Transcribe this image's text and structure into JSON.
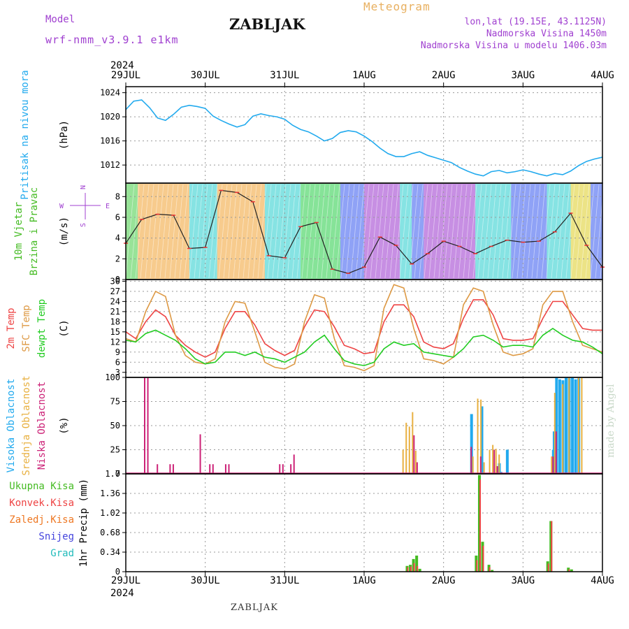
{
  "header": {
    "model_label": "Model",
    "model_name": "wrf-nmm_v3.9.1  e1km",
    "station": "ZABLJAK",
    "product": "Meteogram",
    "lonlat": "lon,lat (19.15E, 43.1125N)",
    "elevation": "Nadmorska Visina 1450m",
    "model_elevation": "Nadmorska Visina u modelu 1406.03m"
  },
  "footer": {
    "station": "ZABLJAK"
  },
  "credit": "made by Angel",
  "time_axis": {
    "year": "2024",
    "labels": [
      "29JUL",
      "30JUL",
      "31JUL",
      "1AUG",
      "2AUG",
      "3AUG",
      "4AUG"
    ]
  },
  "colors": {
    "pressure": "#22aaee",
    "t2m": "#ee4444",
    "sfc": "#dd9944",
    "dewpt": "#22cc22",
    "high_cloud": "#22aaee",
    "mid_cloud": "#e8b040",
    "low_cloud": "#cc2277",
    "total_precip": "#44bb22",
    "convective": "#ee4444",
    "frozen": "#ee7722",
    "snow": "#4444dd",
    "hail": "#22bbbb",
    "purple_label": "#a040d0"
  },
  "chart_data": [
    {
      "type": "line",
      "panel": "pressure",
      "ylabel": "(hPa)",
      "side_labels": [
        "Pritisak na nivou mora"
      ],
      "ylim": [
        1009,
        1025
      ],
      "yticks": [
        1012,
        1016,
        1020,
        1024
      ],
      "x": [
        0,
        0.1,
        0.2,
        0.3,
        0.4,
        0.5,
        0.6,
        0.7,
        0.8,
        0.9,
        1.0,
        1.1,
        1.2,
        1.3,
        1.4,
        1.5,
        1.6,
        1.7,
        1.8,
        1.9,
        2.0,
        2.1,
        2.2,
        2.3,
        2.4,
        2.5,
        2.6,
        2.7,
        2.8,
        2.9,
        3.0,
        3.1,
        3.2,
        3.3,
        3.4,
        3.5,
        3.6,
        3.7,
        3.8,
        3.9,
        4.0,
        4.1,
        4.2,
        4.3,
        4.4,
        4.5,
        4.6,
        4.7,
        4.8,
        4.9,
        5.0,
        5.1,
        5.2,
        5.3,
        5.4,
        5.5,
        5.6,
        5.7,
        5.8,
        5.9,
        6.0
      ],
      "series": [
        {
          "name": "",
          "values": [
            1021.2,
            1022.6,
            1022.8,
            1021.5,
            1019.8,
            1019.4,
            1020.4,
            1021.6,
            1021.9,
            1021.7,
            1021.4,
            1020.1,
            1019.4,
            1018.8,
            1018.3,
            1018.7,
            1020.1,
            1020.5,
            1020.2,
            1020.0,
            1019.6,
            1018.6,
            1017.9,
            1017.5,
            1016.8,
            1016.0,
            1016.4,
            1017.4,
            1017.7,
            1017.5,
            1016.8,
            1015.9,
            1014.8,
            1013.9,
            1013.4,
            1013.4,
            1013.9,
            1014.2,
            1013.6,
            1013.2,
            1012.8,
            1012.4,
            1011.6,
            1011.0,
            1010.5,
            1010.2,
            1010.9,
            1011.1,
            1010.7,
            1010.9,
            1011.2,
            1010.9,
            1010.5,
            1010.2,
            1010.6,
            1010.4,
            1011.0,
            1011.9,
            1012.6,
            1013.0,
            1013.3
          ]
        }
      ]
    },
    {
      "type": "line",
      "panel": "wind",
      "ylabel": "(m/s)",
      "side_labels": [
        "10m Vjetar",
        "Brzina i Pravac"
      ],
      "compass": [
        "N",
        "E",
        "S",
        "W"
      ],
      "ylim": [
        0,
        9.3
      ],
      "yticks": [
        0,
        2,
        4,
        6,
        8
      ],
      "x": [
        0,
        0.2,
        0.4,
        0.6,
        0.8,
        1.0,
        1.2,
        1.4,
        1.6,
        1.8,
        2.0,
        2.2,
        2.4,
        2.6,
        2.8,
        3.0,
        3.2,
        3.4,
        3.6,
        3.8,
        4.0,
        4.2,
        4.4,
        4.6,
        4.8,
        5.0,
        5.2,
        5.4,
        5.6,
        5.8,
        6.0
      ],
      "series": [
        {
          "name": "",
          "values": [
            3.5,
            5.8,
            6.3,
            6.2,
            3.0,
            3.1,
            8.6,
            8.4,
            7.5,
            2.3,
            2.1,
            5.1,
            5.5,
            1.0,
            0.6,
            1.2,
            4.1,
            3.3,
            1.5,
            2.5,
            3.7,
            3.2,
            2.5,
            3.2,
            3.8,
            3.6,
            3.7,
            4.6,
            6.4,
            3.3,
            1.2
          ]
        }
      ]
    },
    {
      "type": "line",
      "panel": "temperature",
      "ylabel": "(C)",
      "side_labels": [
        "2m Temp",
        "SFC Temp",
        "dewpt Temp"
      ],
      "ylim": [
        1.5,
        30.5
      ],
      "yticks": [
        3,
        6,
        9,
        12,
        15,
        18,
        21,
        24,
        27,
        30
      ],
      "x": [
        0,
        0.125,
        0.25,
        0.375,
        0.5,
        0.625,
        0.75,
        0.875,
        1.0,
        1.125,
        1.25,
        1.375,
        1.5,
        1.625,
        1.75,
        1.875,
        2.0,
        2.125,
        2.25,
        2.375,
        2.5,
        2.625,
        2.75,
        2.875,
        3.0,
        3.125,
        3.25,
        3.375,
        3.5,
        3.625,
        3.75,
        3.875,
        4.0,
        4.125,
        4.25,
        4.375,
        4.5,
        4.625,
        4.75,
        4.875,
        5.0,
        5.125,
        5.25,
        5.375,
        5.5,
        5.625,
        5.75,
        5.875,
        6.0
      ],
      "series": [
        {
          "name": "2m Temp",
          "values": [
            15,
            13,
            18,
            21.5,
            19.5,
            14,
            11,
            9,
            7.5,
            9,
            16,
            21,
            21,
            17,
            11.5,
            9.5,
            8,
            9.5,
            16.5,
            21.5,
            21,
            16.5,
            11,
            10,
            8.5,
            9,
            18,
            23,
            23,
            19.5,
            12,
            10.5,
            10,
            11.5,
            19,
            24.5,
            24.5,
            20,
            13,
            12.5,
            12.5,
            13,
            19,
            24,
            24,
            20,
            16,
            15.5,
            15.5
          ]
        },
        {
          "name": "SFC Temp",
          "values": [
            13,
            12,
            21,
            27,
            25.5,
            14,
            8,
            6,
            5.5,
            7,
            18,
            24,
            23.5,
            15,
            6,
            4.5,
            4,
            5.5,
            18,
            26,
            25,
            13,
            5,
            4.5,
            3.5,
            5,
            22,
            29,
            28,
            16,
            7,
            6.5,
            5.5,
            7.5,
            23,
            28,
            27,
            17,
            9,
            8,
            8.5,
            10,
            23,
            27,
            27,
            18,
            11,
            10,
            9
          ]
        },
        {
          "name": "dewpt Temp",
          "values": [
            12.5,
            12,
            14.5,
            15.5,
            14,
            12.5,
            10,
            7,
            5.5,
            6,
            9,
            9,
            8,
            9,
            7.5,
            7,
            6,
            7.5,
            9,
            12,
            14,
            10,
            6.5,
            5.5,
            5,
            6,
            10,
            12,
            11,
            11.5,
            9,
            8.5,
            8,
            7.5,
            10,
            13.5,
            14,
            12.5,
            10.5,
            11,
            11,
            10.5,
            14,
            16,
            14,
            12.5,
            12,
            10.5,
            8.5
          ]
        }
      ]
    },
    {
      "type": "bar",
      "panel": "cloud",
      "ylabel": "(%)",
      "side_labels": [
        "Visoka Oblacnost",
        "Srednja Oblacnost",
        "Niska Oblacnost"
      ],
      "ylim": [
        0,
        100
      ],
      "yticks": [
        0,
        25,
        50,
        75,
        100
      ],
      "series": [
        {
          "name": "Visoka Oblacnost",
          "points": [
            [
              4.72,
              11
            ],
            [
              4.74,
              2
            ],
            [
              5.4,
              25
            ],
            [
              5.41,
              44
            ],
            [
              5.44,
              100
            ],
            [
              5.48,
              98
            ],
            [
              5.52,
              97
            ],
            [
              5.56,
              100
            ],
            [
              5.6,
              99
            ],
            [
              5.64,
              100
            ],
            [
              5.68,
              98
            ],
            [
              5.72,
              99
            ],
            [
              4.37,
              62
            ],
            [
              4.5,
              70
            ],
            [
              4.82,
              25
            ]
          ]
        },
        {
          "name": "Srednja Oblacnost",
          "points": [
            [
              3.49,
              25
            ],
            [
              3.53,
              53
            ],
            [
              3.57,
              49
            ],
            [
              3.61,
              64
            ],
            [
              3.65,
              24
            ],
            [
              4.37,
              18
            ],
            [
              4.43,
              78
            ],
            [
              4.47,
              77
            ],
            [
              4.51,
              12
            ],
            [
              4.58,
              25
            ],
            [
              4.62,
              30
            ],
            [
              4.66,
              26
            ],
            [
              4.7,
              20
            ],
            [
              5.36,
              18
            ],
            [
              5.4,
              84
            ],
            [
              5.5,
              93
            ],
            [
              5.58,
              100
            ],
            [
              5.7,
              100
            ],
            [
              5.74,
              100
            ]
          ]
        },
        {
          "name": "Niska Oblacnost",
          "points": [
            [
              0.22,
              100
            ],
            [
              0.26,
              100
            ],
            [
              0.38,
              10
            ],
            [
              0.54,
              10
            ],
            [
              0.58,
              10
            ],
            [
              0.92,
              41
            ],
            [
              1.04,
              10
            ],
            [
              1.08,
              10
            ],
            [
              1.24,
              10
            ],
            [
              1.28,
              10
            ],
            [
              1.92,
              10
            ],
            [
              1.96,
              10
            ],
            [
              2.06,
              10
            ],
            [
              2.1,
              20
            ],
            [
              3.61,
              40
            ],
            [
              3.65,
              12
            ],
            [
              4.33,
              28
            ],
            [
              4.45,
              18
            ],
            [
              4.62,
              25
            ],
            [
              4.66,
              8
            ],
            [
              5.36,
              18
            ],
            [
              5.4,
              44
            ]
          ]
        }
      ]
    },
    {
      "type": "bar",
      "panel": "precip",
      "ylabel": "1hr Precip (mm)",
      "side_labels": [
        "Ukupna Kisa",
        "Konvek.Kisa",
        "Zaledj.Kisa",
        "Snijeg",
        "Grad"
      ],
      "ylim": [
        0,
        1.7
      ],
      "yticks": [
        0,
        0.34,
        0.68,
        1.02,
        1.36,
        1.7
      ],
      "series": [
        {
          "name": "Ukupna Kisa",
          "points": [
            [
              3.55,
              0.1
            ],
            [
              3.59,
              0.12
            ],
            [
              3.63,
              0.22
            ],
            [
              3.67,
              0.28
            ],
            [
              3.71,
              0.05
            ],
            [
              4.42,
              0.28
            ],
            [
              4.46,
              1.68
            ],
            [
              4.5,
              0.52
            ],
            [
              4.58,
              0.12
            ],
            [
              4.62,
              0.03
            ],
            [
              5.32,
              0.18
            ],
            [
              5.36,
              0.88
            ],
            [
              5.58,
              0.07
            ],
            [
              5.62,
              0.04
            ]
          ]
        },
        {
          "name": "Konvek.Kisa",
          "points": [
            [
              3.55,
              0.08
            ],
            [
              3.59,
              0.09
            ],
            [
              3.63,
              0.15
            ],
            [
              3.67,
              0.1
            ],
            [
              4.42,
              0.2
            ],
            [
              4.46,
              1.6
            ],
            [
              4.5,
              0.45
            ],
            [
              4.58,
              0.08
            ],
            [
              5.32,
              0.14
            ],
            [
              5.36,
              0.88
            ],
            [
              5.58,
              0.04
            ]
          ]
        }
      ]
    }
  ]
}
